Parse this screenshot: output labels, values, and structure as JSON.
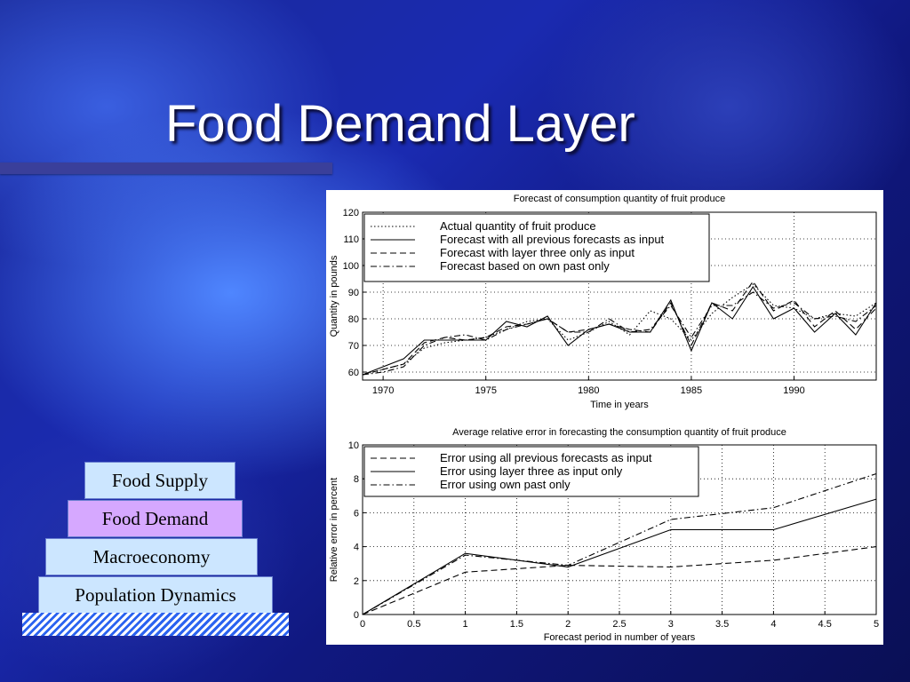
{
  "slide": {
    "title": "Food Demand Layer",
    "layers": [
      "Food Supply",
      "Food Demand",
      "Macroeconomy",
      "Population Dynamics"
    ]
  },
  "chart_data": [
    {
      "type": "line",
      "title": "Forecast of consumption quantity of fruit produce",
      "xlabel": "Time in years",
      "ylabel": "Quantity in pounds",
      "xlim": [
        1969,
        1994
      ],
      "ylim": [
        57,
        120
      ],
      "xticks": [
        1970,
        1975,
        1980,
        1985,
        1990
      ],
      "yticks": [
        60,
        70,
        80,
        90,
        100,
        110,
        120
      ],
      "grid": true,
      "legend_position": "top-left",
      "series": [
        {
          "name": "Actual quantity of fruit produce",
          "style": "dotted",
          "x": [
            1969,
            1970,
            1971,
            1972,
            1973,
            1974,
            1975,
            1976,
            1977,
            1978,
            1979,
            1980,
            1981,
            1982,
            1983,
            1984,
            1985,
            1986,
            1987,
            1988,
            1989,
            1990,
            1991,
            1992,
            1993,
            1994
          ],
          "y": [
            59,
            61,
            63,
            69,
            71,
            72,
            73,
            76,
            79,
            80,
            72,
            75,
            79,
            74,
            83,
            80,
            72,
            82,
            88,
            93,
            85,
            84,
            80,
            82,
            81,
            86
          ]
        },
        {
          "name": "Forecast with all previous forecasts as input",
          "style": "solid",
          "x": [
            1969,
            1970,
            1971,
            1972,
            1973,
            1974,
            1975,
            1976,
            1977,
            1978,
            1979,
            1980,
            1981,
            1982,
            1983,
            1984,
            1985,
            1986,
            1987,
            1988,
            1989,
            1990,
            1991,
            1992,
            1993,
            1994
          ],
          "y": [
            59,
            62,
            65,
            72,
            72,
            72,
            72,
            79,
            77,
            81,
            70,
            76,
            78,
            75,
            75,
            87,
            68,
            86,
            80,
            92,
            80,
            84,
            75,
            82,
            74,
            86
          ]
        },
        {
          "name": "Forecast with layer three only as input",
          "style": "dashed",
          "x": [
            1969,
            1970,
            1971,
            1972,
            1973,
            1974,
            1975,
            1976,
            1977,
            1978,
            1979,
            1980,
            1981,
            1982,
            1983,
            1984,
            1985,
            1986,
            1987,
            1988,
            1989,
            1990,
            1991,
            1992,
            1993,
            1994
          ],
          "y": [
            59,
            61,
            63,
            71,
            73,
            72,
            73,
            77,
            78,
            80,
            75,
            76,
            78,
            76,
            75,
            86,
            70,
            86,
            83,
            94,
            83,
            87,
            77,
            83,
            76,
            84
          ]
        },
        {
          "name": "Forecast based on own past only",
          "style": "dashdot",
          "x": [
            1969,
            1970,
            1971,
            1972,
            1973,
            1974,
            1975,
            1976,
            1977,
            1978,
            1979,
            1980,
            1981,
            1982,
            1983,
            1984,
            1985,
            1986,
            1987,
            1988,
            1989,
            1990,
            1991,
            1992,
            1993,
            1994
          ],
          "y": [
            59,
            60,
            62,
            70,
            73,
            74,
            72,
            76,
            78,
            80,
            75,
            75,
            80,
            75,
            76,
            85,
            73,
            85,
            85,
            90,
            84,
            86,
            80,
            81,
            79,
            85
          ]
        }
      ]
    },
    {
      "type": "line",
      "title": "Average relative error in forecasting the consumption quantity of fruit produce",
      "xlabel": "Forecast period in number of years",
      "ylabel": "Relative error in percent",
      "xlim": [
        0,
        5
      ],
      "ylim": [
        0,
        10
      ],
      "xticks": [
        0,
        0.5,
        1,
        1.5,
        2,
        2.5,
        3,
        3.5,
        4,
        4.5,
        5
      ],
      "yticks": [
        0,
        2,
        4,
        6,
        8,
        10
      ],
      "grid": true,
      "legend_position": "top-left",
      "series": [
        {
          "name": "Error using all previous forecasts as input",
          "style": "dashed",
          "x": [
            0,
            1,
            2,
            3,
            4,
            5
          ],
          "y": [
            0,
            2.5,
            2.9,
            2.8,
            3.2,
            4.0
          ]
        },
        {
          "name": "Error using layer three as input only",
          "style": "solid",
          "x": [
            0,
            1,
            2,
            3,
            4,
            5
          ],
          "y": [
            0,
            3.6,
            2.8,
            5.0,
            5.0,
            6.8
          ]
        },
        {
          "name": "Error using own past only",
          "style": "dashdot",
          "x": [
            0,
            1,
            2,
            3,
            4,
            5
          ],
          "y": [
            0,
            3.5,
            2.9,
            5.6,
            6.3,
            8.3
          ]
        }
      ]
    }
  ]
}
